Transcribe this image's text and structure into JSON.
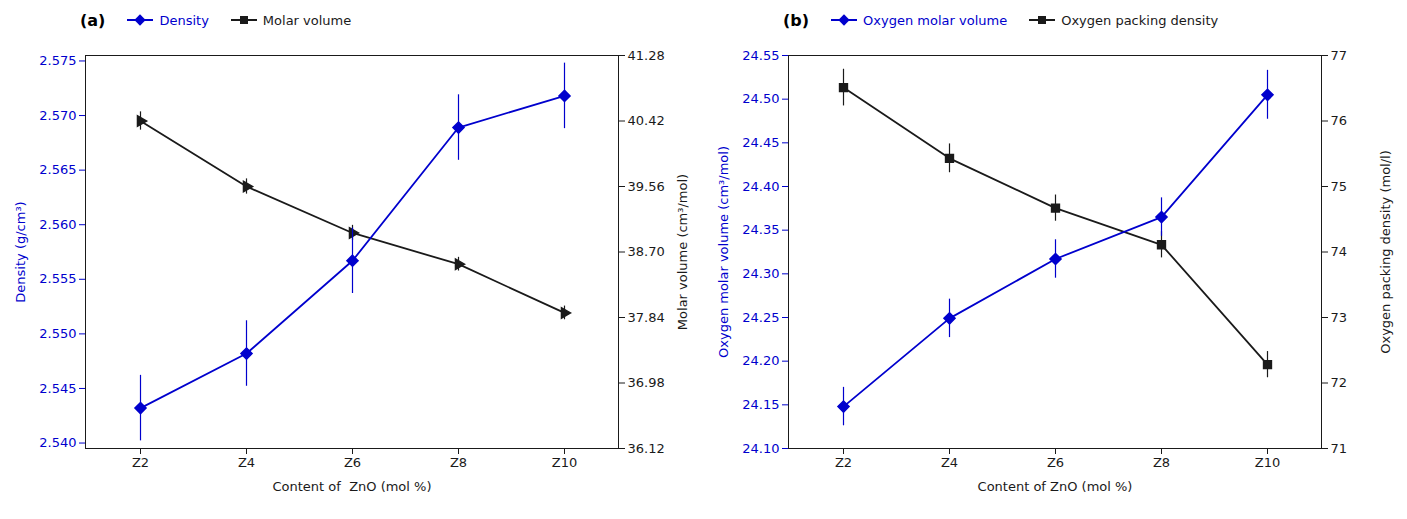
{
  "chart_data": [
    {
      "type": "line",
      "title": "(a)",
      "categories": [
        "Z2",
        "Z4",
        "Z6",
        "Z8",
        "Z10"
      ],
      "x_label": "Content of  ZnO (mol %)",
      "y_label": "Density (g/cm³)",
      "y2_label": "Molar volume (cm³/mol)",
      "ylim": [
        2.5395,
        2.5755
      ],
      "yticks": [
        {
          "value": 2.54,
          "label": "2.540"
        },
        2.545,
        {
          "value": 2.55,
          "label": "2.550"
        },
        2.555,
        {
          "value": 2.56,
          "label": "2.560"
        },
        2.565,
        {
          "value": 2.57,
          "label": "2.570"
        },
        2.575
      ],
      "y2lim": [
        36.12,
        41.28
      ],
      "y2ticks": [
        36.12,
        36.98,
        37.84,
        {
          "value": 38.7,
          "label": "38.70"
        },
        39.56,
        40.42,
        41.28
      ],
      "legend": "upper left",
      "series": [
        {
          "name": "Density",
          "color": "#0000cd",
          "marker": "diamond",
          "values": [
            2.5432,
            2.5482,
            2.5567,
            2.5689,
            2.5718
          ],
          "errors": [
            0.003,
            0.003,
            0.003,
            0.003,
            0.003
          ]
        },
        {
          "name": "Molar volume",
          "color": "#1a1a1a",
          "marker": "triangle_right",
          "axis": "y2",
          "values": [
            40.42,
            39.56,
            38.95,
            38.54,
            37.9
          ],
          "errors": [
            0.12,
            0.1,
            0.1,
            0.09,
            0.09
          ]
        }
      ]
    },
    {
      "type": "line",
      "title": "(b)",
      "categories": [
        "Z2",
        "Z4",
        "Z6",
        "Z8",
        "Z10"
      ],
      "x_label": "Content of ZnO (mol %)",
      "y_label": "Oxygen molar volume (cm³/mol)",
      "y2_label": "Oxygen packing density (mol/l)",
      "ylim": [
        24.1,
        24.55
      ],
      "yticks": [
        {
          "value": 24.1,
          "label": "24.10"
        },
        24.15,
        {
          "value": 24.2,
          "label": "24.20"
        },
        24.25,
        {
          "value": 24.3,
          "label": "24.30"
        },
        24.35,
        {
          "value": 24.4,
          "label": "24.40"
        },
        24.45,
        {
          "value": 24.5,
          "label": "24.50"
        },
        24.55
      ],
      "y2lim": [
        71,
        77
      ],
      "y2ticks": [
        71,
        72,
        73,
        74,
        75,
        76,
        77
      ],
      "legend": "upper left",
      "series": [
        {
          "name": "Oxygen molar volume",
          "color": "#0000cd",
          "marker": "diamond",
          "values": [
            24.148,
            24.249,
            24.317,
            24.365,
            24.505
          ],
          "errors": [
            0.022,
            0.022,
            0.022,
            0.022,
            0.028
          ]
        },
        {
          "name": "Oxygen packing density",
          "color": "#1a1a1a",
          "marker": "square",
          "axis": "y2",
          "values": [
            76.51,
            75.43,
            74.67,
            74.11,
            72.28
          ],
          "errors": [
            0.28,
            0.22,
            0.2,
            0.2,
            0.2
          ]
        }
      ]
    }
  ]
}
